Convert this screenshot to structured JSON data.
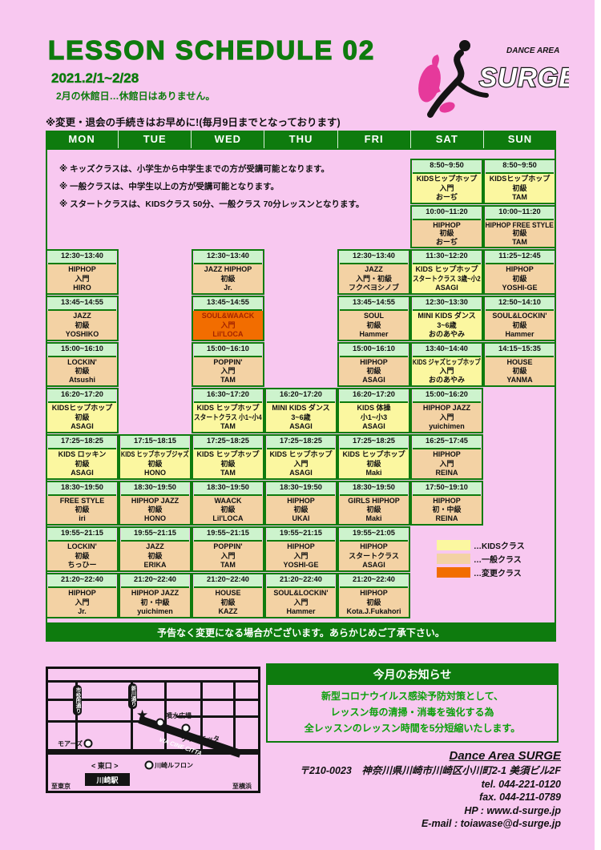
{
  "page": {
    "title": "LESSON SCHEDULE  02",
    "date_range": "2021.2/1~2/28",
    "holiday_note": "2月の休館日…休館日はありません。",
    "deadline_note": "※変更・退会の手続きはお早めに!(毎月9日までとなっております)"
  },
  "logo": {
    "area_label": "DANCE AREA",
    "brand": "SURGE"
  },
  "notes": [
    "※ キッズクラスは、小学生から中学生までの方が受講可能となります。",
    "※ 一般クラスは、中学生以上の方が受講可能となります。",
    "※ スタートクラスは、KIDSクラス 50分、一般クラス 70分レッスンとなります。"
  ],
  "days": [
    "MON",
    "TUE",
    "WED",
    "THU",
    "FRI",
    "SAT",
    "SUN"
  ],
  "schedule": [
    {
      "day": 0,
      "row": 2,
      "type": "general",
      "time": "12:30~13:40",
      "name": "HIPHOP",
      "level": "入門",
      "teacher": "HIRO"
    },
    {
      "day": 0,
      "row": 3,
      "type": "general",
      "time": "13:45~14:55",
      "name": "JAZZ",
      "level": "初級",
      "teacher": "YOSHIKO"
    },
    {
      "day": 0,
      "row": 4,
      "type": "general",
      "time": "15:00~16:10",
      "name": "LOCKIN'",
      "level": "初級",
      "teacher": "Atsushi"
    },
    {
      "day": 0,
      "row": 5,
      "type": "kids",
      "time": "16:20~17:20",
      "name": "KIDSヒップホップ",
      "level": "初級",
      "teacher": "ASAGI"
    },
    {
      "day": 0,
      "row": 6,
      "type": "kids",
      "time": "17:25~18:25",
      "name": "KIDS ロッキン",
      "level": "初級",
      "teacher": "ASAGI"
    },
    {
      "day": 0,
      "row": 7,
      "type": "general",
      "time": "18:30~19:50",
      "name": "FREE STYLE",
      "level": "初級",
      "teacher": "iri"
    },
    {
      "day": 0,
      "row": 8,
      "type": "general",
      "time": "19:55~21:15",
      "name": "LOCKIN'",
      "level": "初級",
      "teacher": "ちっひー"
    },
    {
      "day": 0,
      "row": 9,
      "type": "general",
      "time": "21:20~22:40",
      "name": "HIPHOP",
      "level": "入門",
      "teacher": "Jr."
    },
    {
      "day": 1,
      "row": 6,
      "type": "kids",
      "time": "17:15~18:15",
      "name": "KIDS ヒップホップジャズ",
      "level": "初級",
      "teacher": "HONO"
    },
    {
      "day": 1,
      "row": 7,
      "type": "general",
      "time": "18:30~19:50",
      "name": "HIPHOP JAZZ",
      "level": "初級",
      "teacher": "HONO"
    },
    {
      "day": 1,
      "row": 8,
      "type": "general",
      "time": "19:55~21:15",
      "name": "JAZZ",
      "level": "初級",
      "teacher": "ERIKA"
    },
    {
      "day": 1,
      "row": 9,
      "type": "general",
      "time": "21:20~22:40",
      "name": "HIPHOP JAZZ",
      "level": "初・中級",
      "teacher": "yuichimen"
    },
    {
      "day": 2,
      "row": 2,
      "type": "general",
      "time": "12:30~13:40",
      "name": "JAZZ HIPHOP",
      "level": "初級",
      "teacher": "Jr."
    },
    {
      "day": 2,
      "row": 3,
      "type": "changed",
      "time": "13:45~14:55",
      "name": "SOUL&WAACK",
      "level": "入門",
      "teacher": "Lil'LOCA"
    },
    {
      "day": 2,
      "row": 4,
      "type": "general",
      "time": "15:00~16:10",
      "name": "POPPIN'",
      "level": "入門",
      "teacher": "TAM"
    },
    {
      "day": 2,
      "row": 5,
      "type": "kids",
      "time": "16:30~17:20",
      "name": "KIDS ヒップホップ",
      "level": "スタートクラス 小1~小4",
      "teacher": "TAM"
    },
    {
      "day": 2,
      "row": 6,
      "type": "kids",
      "time": "17:25~18:25",
      "name": "KIDS ヒップホップ",
      "level": "初級",
      "teacher": "TAM"
    },
    {
      "day": 2,
      "row": 7,
      "type": "general",
      "time": "18:30~19:50",
      "name": "WAACK",
      "level": "初級",
      "teacher": "Lil'LOCA"
    },
    {
      "day": 2,
      "row": 8,
      "type": "general",
      "time": "19:55~21:15",
      "name": "POPPIN'",
      "level": "入門",
      "teacher": "TAM"
    },
    {
      "day": 2,
      "row": 9,
      "type": "general",
      "time": "21:20~22:40",
      "name": "HOUSE",
      "level": "初級",
      "teacher": "KAZZ"
    },
    {
      "day": 3,
      "row": 5,
      "type": "kids",
      "time": "16:20~17:20",
      "name": "MINI KIDS ダンス",
      "level": "3~6歳",
      "teacher": "ASAGI"
    },
    {
      "day": 3,
      "row": 6,
      "type": "kids",
      "time": "17:25~18:25",
      "name": "KIDS ヒップホップ",
      "level": "入門",
      "teacher": "ASAGI"
    },
    {
      "day": 3,
      "row": 7,
      "type": "general",
      "time": "18:30~19:50",
      "name": "HIPHOP",
      "level": "初級",
      "teacher": "UKAI"
    },
    {
      "day": 3,
      "row": 8,
      "type": "general",
      "time": "19:55~21:15",
      "name": "HIPHOP",
      "level": "入門",
      "teacher": "YOSHI-GE"
    },
    {
      "day": 3,
      "row": 9,
      "type": "general",
      "time": "21:20~22:40",
      "name": "SOUL&LOCKIN'",
      "level": "入門",
      "teacher": "Hammer"
    },
    {
      "day": 4,
      "row": 2,
      "type": "general",
      "time": "12:30~13:40",
      "name": "JAZZ",
      "level": "入門・初級",
      "teacher": "フクベヨシノブ"
    },
    {
      "day": 4,
      "row": 3,
      "type": "general",
      "time": "13:45~14:55",
      "name": "SOUL",
      "level": "初級",
      "teacher": "Hammer"
    },
    {
      "day": 4,
      "row": 4,
      "type": "general",
      "time": "15:00~16:10",
      "name": "HIPHOP",
      "level": "初級",
      "teacher": "ASAGI"
    },
    {
      "day": 4,
      "row": 5,
      "type": "kids",
      "time": "16:20~17:20",
      "name": "KIDS 体操",
      "level": "小1~小3",
      "teacher": "ASAGI"
    },
    {
      "day": 4,
      "row": 6,
      "type": "kids",
      "time": "17:25~18:25",
      "name": "KIDS ヒップホップ",
      "level": "初級",
      "teacher": "Maki"
    },
    {
      "day": 4,
      "row": 7,
      "type": "general",
      "time": "18:30~19:50",
      "name": "GIRLS HIPHOP",
      "level": "初級",
      "teacher": "Maki"
    },
    {
      "day": 4,
      "row": 8,
      "type": "general",
      "time": "19:55~21:05",
      "name": "HIPHOP",
      "level": "スタートクラス",
      "teacher": "ASAGI"
    },
    {
      "day": 4,
      "row": 9,
      "type": "general",
      "time": "21:20~22:40",
      "name": "HIPHOP",
      "level": "初級",
      "teacher": "Kota.J.Fukahori"
    },
    {
      "day": 5,
      "row": 0,
      "type": "kids",
      "time": "8:50~9:50",
      "name": "KIDSヒップホップ",
      "level": "入門",
      "teacher": "おーぢ"
    },
    {
      "day": 5,
      "row": 1,
      "type": "general",
      "time": "10:00~11:20",
      "name": "HIPHOP",
      "level": "初級",
      "teacher": "おーぢ"
    },
    {
      "day": 5,
      "row": 2,
      "type": "kids",
      "time": "11:30~12:20",
      "name": "KIDS ヒップホップ",
      "level": "スタートクラス 3歳~小2",
      "teacher": "ASAGI"
    },
    {
      "day": 5,
      "row": 3,
      "type": "kids",
      "time": "12:30~13:30",
      "name": "MINI KIDS ダンス",
      "level": "3~6歳",
      "teacher": "おのあやみ"
    },
    {
      "day": 5,
      "row": 4,
      "type": "kids",
      "time": "13:40~14:40",
      "name": "KIDS ジャズヒップホップ",
      "level": "入門",
      "teacher": "おのあやみ"
    },
    {
      "day": 5,
      "row": 5,
      "type": "general",
      "time": "15:00~16:20",
      "name": "HIPHOP JAZZ",
      "level": "入門",
      "teacher": "yuichimen"
    },
    {
      "day": 5,
      "row": 6,
      "type": "general",
      "time": "16:25~17:45",
      "name": "HIPHOP",
      "level": "入門",
      "teacher": "REINA"
    },
    {
      "day": 5,
      "row": 7,
      "type": "general",
      "time": "17:50~19:10",
      "name": "HIPHOP",
      "level": "初・中級",
      "teacher": "REINA"
    },
    {
      "day": 6,
      "row": 0,
      "type": "kids",
      "time": "8:50~9:50",
      "name": "KIDSヒップホップ",
      "level": "初級",
      "teacher": "TAM"
    },
    {
      "day": 6,
      "row": 1,
      "type": "general",
      "time": "10:00~11:20",
      "name": "HIPHOP FREE STYLE",
      "level": "初級",
      "teacher": "TAM"
    },
    {
      "day": 6,
      "row": 2,
      "type": "general",
      "time": "11:25~12:45",
      "name": "HIPHOP",
      "level": "初級",
      "teacher": "YOSHI-GE"
    },
    {
      "day": 6,
      "row": 3,
      "type": "general",
      "time": "12:50~14:10",
      "name": "SOUL&LOCKIN'",
      "level": "初級",
      "teacher": "Hammer"
    },
    {
      "day": 6,
      "row": 4,
      "type": "general",
      "time": "14:15~15:35",
      "name": "HOUSE",
      "level": "初級",
      "teacher": "YANMA"
    }
  ],
  "legend": [
    {
      "type": "kids",
      "label": "…KIDSクラス"
    },
    {
      "type": "general",
      "label": "…一般クラス"
    },
    {
      "type": "changed",
      "label": "…変更クラス"
    }
  ],
  "footer_bar": "予告なく変更になる場合がございます。あらかじめご了承下さい。",
  "announcement": {
    "title": "今月のお知らせ",
    "lines": [
      "新型コロナウイルス感染予防対策として、",
      "レッスン毎の清掃・消毒を強化する為",
      "全レッスンのレッスン時間を5分短縮いたします。"
    ]
  },
  "map": {
    "street_vertical_1": "市役所通り",
    "street_vertical_2": "新川通り",
    "fountain": "噴水広場",
    "club_citta": "クラブチッタ",
    "via_cine_citta": "VIA CINE CITTA",
    "moas": "モアーズ",
    "lefront": "川崎ルフロン",
    "east_exit": "< 東口 >",
    "station": "川崎駅",
    "to_tokyo": "至東京",
    "to_yokohama": "至横浜"
  },
  "contact": {
    "name": "Dance Area SURGE",
    "address": "〒210-0023　神奈川県川崎市川崎区小川町2-1 美須ビル2F",
    "tel": "tel. 044-221-0120",
    "fax": "fax. 044-211-0789",
    "hp": "HP : www.d-surge.jp",
    "email": "E-mail :  toiawase@d-surge.jp"
  },
  "colors": {
    "background": "#f8c8f0",
    "green": "#0e7b0e",
    "kids": "#fbf7a0",
    "general": "#f3d2a4",
    "changed": "#f26d00",
    "time_bg": "#cdf3cd"
  }
}
